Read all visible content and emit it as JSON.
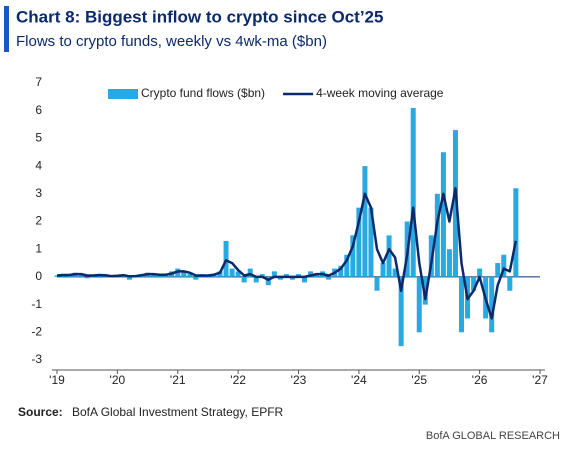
{
  "chart_data": {
    "type": "bar-line",
    "title": "Chart 8: Biggest inflow to crypto since Oct’25",
    "subtitle": "Flows to crypto funds, weekly vs 4wk-ma ($bn)",
    "source_label": "Source:",
    "source": "BofA Global Investment Strategy, EPFR",
    "branding": "BofA GLOBAL RESEARCH",
    "legend": "top",
    "x": [
      2019,
      2019.1,
      2019.2,
      2019.3,
      2019.4,
      2019.5,
      2019.6,
      2019.7,
      2019.8,
      2019.9,
      2020,
      2020.1,
      2020.2,
      2020.3,
      2020.4,
      2020.5,
      2020.6,
      2020.7,
      2020.8,
      2020.9,
      2021,
      2021.1,
      2021.2,
      2021.3,
      2021.4,
      2021.5,
      2021.6,
      2021.7,
      2021.8,
      2021.9,
      2022,
      2022.1,
      2022.2,
      2022.3,
      2022.4,
      2022.5,
      2022.6,
      2022.7,
      2022.8,
      2022.9,
      2023,
      2023.1,
      2023.2,
      2023.3,
      2023.4,
      2023.5,
      2023.6,
      2023.7,
      2023.8,
      2023.9,
      2024,
      2024.1,
      2024.2,
      2024.3,
      2024.4,
      2024.5,
      2024.6,
      2024.7,
      2024.8,
      2024.9,
      2025,
      2025.1,
      2025.2,
      2025.3,
      2025.4,
      2025.5,
      2025.6,
      2025.7,
      2025.8,
      2025.9,
      2026,
      2026.1,
      2026.2,
      2026.3,
      2026.4,
      2026.5,
      2026.6
    ],
    "series": [
      {
        "name": "Crypto fund flows ($bn)",
        "color": "#29a9e1",
        "kind": "bar",
        "values": [
          0.05,
          0.1,
          0.05,
          0.15,
          0.1,
          -0.05,
          0.05,
          0.1,
          0.05,
          0.0,
          0.05,
          0.1,
          -0.1,
          0.05,
          0.1,
          0.15,
          0.1,
          0.05,
          0.1,
          0.2,
          0.3,
          0.2,
          0.1,
          -0.1,
          0.1,
          0.05,
          0.1,
          0.2,
          1.3,
          0.3,
          0.2,
          -0.2,
          0.3,
          -0.2,
          0.1,
          -0.3,
          0.2,
          -0.1,
          0.1,
          -0.1,
          0.1,
          -0.2,
          0.2,
          0.1,
          0.2,
          -0.1,
          0.3,
          0.4,
          0.8,
          1.5,
          2.5,
          4.0,
          2.5,
          -0.5,
          0.5,
          1.5,
          0.3,
          -2.5,
          2.0,
          6.1,
          -2.0,
          -1.0,
          1.5,
          3.0,
          4.5,
          1.0,
          5.3,
          -2.0,
          -1.5,
          -0.5,
          0.3,
          -1.5,
          -2.0,
          0.5,
          0.8,
          -0.5,
          3.2
        ]
      },
      {
        "name": "4-week moving average",
        "color": "#0b2a6b",
        "kind": "line",
        "values": [
          0.05,
          0.07,
          0.07,
          0.1,
          0.1,
          0.05,
          0.05,
          0.07,
          0.06,
          0.03,
          0.04,
          0.06,
          0.02,
          0.03,
          0.06,
          0.1,
          0.1,
          0.08,
          0.08,
          0.12,
          0.2,
          0.2,
          0.15,
          0.05,
          0.05,
          0.05,
          0.08,
          0.15,
          0.6,
          0.5,
          0.25,
          0.05,
          0.1,
          0.0,
          0.0,
          -0.1,
          0.0,
          0.0,
          0.0,
          0.0,
          0.0,
          0.0,
          0.05,
          0.1,
          0.1,
          0.05,
          0.15,
          0.3,
          0.6,
          1.1,
          2.0,
          3.0,
          2.5,
          1.0,
          0.5,
          1.0,
          0.7,
          -0.5,
          0.8,
          2.5,
          0.5,
          -0.8,
          0.5,
          2.0,
          3.0,
          2.0,
          3.2,
          0.5,
          -0.8,
          -0.5,
          0.0,
          -0.8,
          -1.5,
          -0.3,
          0.3,
          0.2,
          1.3
        ]
      }
    ],
    "ylim": [
      -3,
      7
    ],
    "yticks": [
      -3,
      -2,
      -1,
      0,
      1,
      2,
      3,
      4,
      5,
      6,
      7
    ],
    "xlim": [
      2019,
      2027
    ],
    "xticks": [
      {
        "value": 2019,
        "label": "'19"
      },
      {
        "value": 2020,
        "label": "'20"
      },
      {
        "value": 2021,
        "label": "'21"
      },
      {
        "value": 2022,
        "label": "'22"
      },
      {
        "value": 2023,
        "label": "'23"
      },
      {
        "value": 2024,
        "label": "'24"
      },
      {
        "value": 2025,
        "label": "'25"
      },
      {
        "value": 2026,
        "label": "'26"
      },
      {
        "value": 2027,
        "label": "'27"
      }
    ]
  }
}
